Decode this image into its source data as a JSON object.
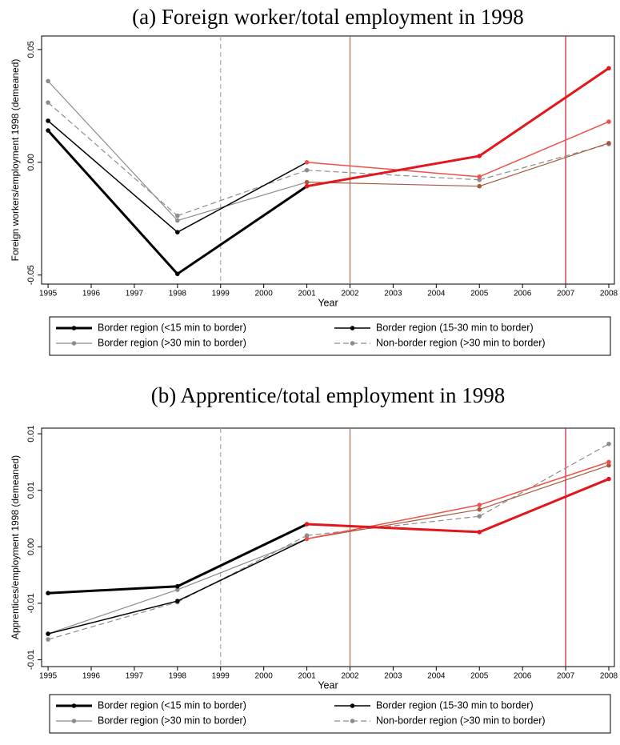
{
  "chart_data": [
    {
      "type": "line",
      "title": "(a) Foreign worker/total employment in 1998",
      "x_label": "Year",
      "y_label": "Foreign workers/employment 1998 (demeaned)",
      "x": [
        1995,
        1998,
        2001,
        2005,
        2008
      ],
      "xlim": [
        1994.85,
        2008.13
      ],
      "xticks": [
        1995,
        1996,
        1997,
        1998,
        1999,
        2000,
        2001,
        2002,
        2003,
        2004,
        2005,
        2006,
        2007,
        2008
      ],
      "ylim": [
        -0.054,
        0.056
      ],
      "yticks": [
        -0.05,
        {
          "value": 0,
          "label": "0.00"
        },
        0.05
      ],
      "vlines": [
        {
          "x": 1999,
          "color": "#aaaaaa",
          "dash": true
        },
        {
          "x": 2002,
          "color": "#a86b55",
          "dash": false
        },
        {
          "x": 2007,
          "color": "#c8143c",
          "dash": false
        }
      ],
      "series": [
        {
          "name": "Border region (<15 min to border)",
          "values": [
            0.0141,
            -0.0495,
            -0.0106,
            0.0028,
            0.0417
          ],
          "colors": [
            "#000000",
            "#000000",
            "#e3161c",
            "#e3161c",
            "#e3161c"
          ],
          "width": 3,
          "dash": false
        },
        {
          "name": "Border region (15-30 min to border)",
          "values": [
            0.0184,
            -0.031,
            0.0,
            -0.0064,
            0.018
          ],
          "colors": [
            "#000000",
            "#000000",
            "#f0504a",
            "#f0504a",
            "#f0504a"
          ],
          "width": 1.5,
          "dash": false
        },
        {
          "name": "Border region (>30 min to border)",
          "values": [
            0.036,
            -0.0258,
            -0.0088,
            -0.0106,
            0.0085
          ],
          "colors": [
            "#8c8c8c",
            "#8c8c8c",
            "#a65a3c",
            "#a65a3c",
            "#a65a3c"
          ],
          "width": 1.2,
          "dash": false
        },
        {
          "name": "Non-border region (>30 min to border)",
          "values": [
            0.0265,
            -0.0237,
            -0.0035,
            -0.0078,
            0.0081
          ],
          "colors": [
            "#8c8c8c",
            "#8c8c8c",
            "#8c8c8c",
            "#8c8c8c",
            "#8c8c8c"
          ],
          "width": 1.2,
          "dash": true
        }
      ]
    },
    {
      "type": "line",
      "title": "(b) Apprentice/total employment in 1998",
      "x_label": "Year",
      "y_label": "Apprentices/employment 1998 (demeaned)",
      "x": [
        1995,
        1998,
        2001,
        2005,
        2008
      ],
      "xlim": [
        1994.85,
        2008.13
      ],
      "xticks": [
        1995,
        1996,
        1997,
        1998,
        1999,
        2000,
        2001,
        2002,
        2003,
        2004,
        2005,
        2006,
        2007,
        2008
      ],
      "ylim": [
        -0.0106,
        0.0105
      ],
      "yticks": [
        -0.01,
        {
          "value": -0.005,
          "label": "-0.01"
        },
        {
          "value": 0,
          "label": "0.00"
        },
        {
          "value": 0.005,
          "label": "0.01"
        },
        0.01
      ],
      "vlines": [
        {
          "x": 1999,
          "color": "#aaaaaa",
          "dash": true
        },
        {
          "x": 2002,
          "color": "#a86b55",
          "dash": false
        },
        {
          "x": 2007,
          "color": "#c8143c",
          "dash": false
        }
      ],
      "series": [
        {
          "name": "Border region (<15 min to border)",
          "values": [
            -0.0041,
            -0.0035,
            0.002,
            0.0013,
            0.006
          ],
          "colors": [
            "#000000",
            "#000000",
            "#e3161c",
            "#e3161c",
            "#e3161c"
          ],
          "width": 3,
          "dash": false
        },
        {
          "name": "Border region (15-30 min to border)",
          "values": [
            -0.0077,
            -0.0048,
            0.0007,
            0.0037,
            0.0075
          ],
          "colors": [
            "#000000",
            "#000000",
            "#f0504a",
            "#f0504a",
            "#f0504a"
          ],
          "width": 1.5,
          "dash": false
        },
        {
          "name": "Border region (>30 min to border)",
          "values": [
            -0.0077,
            -0.0038,
            0.0007,
            0.0033,
            0.0072
          ],
          "colors": [
            "#8c8c8c",
            "#8c8c8c",
            "#a65a3c",
            "#a65a3c",
            "#a65a3c"
          ],
          "width": 1.2,
          "dash": false
        },
        {
          "name": "Non-border region (>30 min to border)",
          "values": [
            -0.0082,
            -0.0049,
            0.001,
            0.0027,
            0.0091
          ],
          "colors": [
            "#8c8c8c",
            "#8c8c8c",
            "#8c8c8c",
            "#8c8c8c",
            "#8c8c8c"
          ],
          "width": 1.2,
          "dash": true
        }
      ]
    }
  ]
}
